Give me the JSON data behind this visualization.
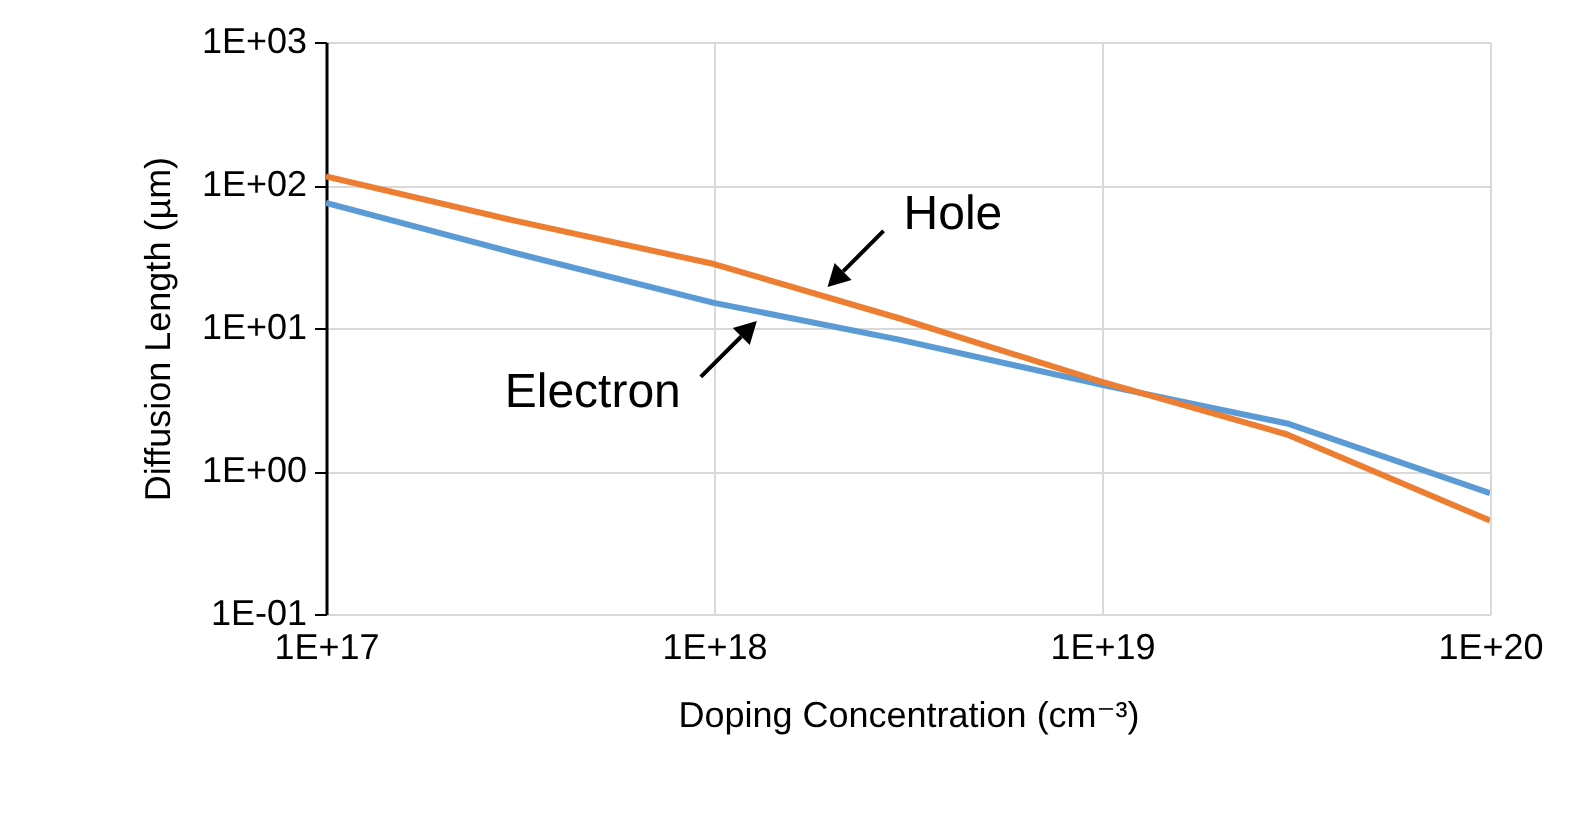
{
  "chart_data": {
    "type": "line",
    "xlabel": "Doping Concentration (cm⁻³)",
    "ylabel": "Diffusion Length (µm)",
    "log": "xy",
    "grid": true,
    "legend": false,
    "marker": "none",
    "line_style": "solid",
    "x": [
      1e+17,
      3e+17,
      1e+18,
      3e+18,
      1e+19,
      3e+19,
      1e+20
    ],
    "xlim": [
      1e+17,
      1e+20
    ],
    "xticks": [
      {
        "value": 1e+17,
        "label": "1E+17"
      },
      {
        "value": 1e+18,
        "label": "1E+18"
      },
      {
        "value": 1e+19,
        "label": "1E+19"
      },
      {
        "value": 1e+20,
        "label": "1E+20"
      }
    ],
    "ylim": [
      0.1,
      1000
    ],
    "yticks": [
      {
        "value": 0.1,
        "label": "1E-01"
      },
      {
        "value": 1,
        "label": "1E+00"
      },
      {
        "value": 10,
        "label": "1E+01"
      },
      {
        "value": 100,
        "label": "1E+02"
      },
      {
        "value": 1000,
        "label": "1E+03"
      }
    ],
    "series": [
      {
        "name": "Electron",
        "color": "#5b9bd5",
        "values": [
          75,
          34,
          15,
          8.3,
          4.0,
          2.15,
          0.7
        ]
      },
      {
        "name": "Hole",
        "color": "#ed7d31",
        "values": [
          115,
          57,
          28,
          11.7,
          4.2,
          1.8,
          0.45
        ]
      }
    ]
  }
}
